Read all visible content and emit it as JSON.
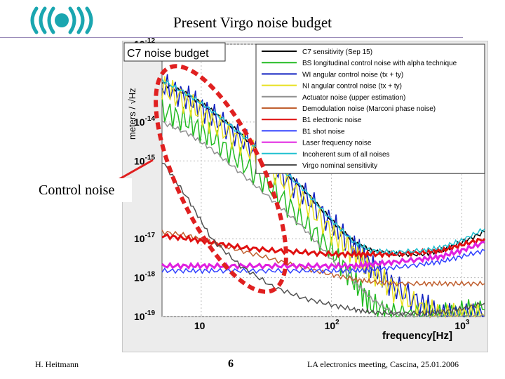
{
  "slide": {
    "title": "Present Virgo noise budget",
    "annotation": "Control noise",
    "footer_left": "H. Heitmann",
    "page_number": "6",
    "footer_right": "LA electronics meeting, Cascina, 25.01.2006"
  },
  "colors": {
    "annotation_circle": "#e02020",
    "arrow": "#e02020",
    "rule": "#9a8bb8",
    "logo": "#1aa6b0"
  },
  "chart_data": {
    "type": "line",
    "title": "C7 noise budget",
    "ylabel": "meters / √Hz",
    "xlabel": "frequency[Hz]",
    "x_scale": "log",
    "y_scale": "log",
    "xlim": [
      5,
      1500
    ],
    "ylim": [
      1e-19,
      1e-12
    ],
    "x_ticks": [
      {
        "value": 10,
        "base": "10",
        "exp": ""
      },
      {
        "value": 100,
        "base": "10",
        "exp": "2"
      },
      {
        "value": 1000,
        "base": "10",
        "exp": "3"
      }
    ],
    "y_ticks": [
      {
        "value": 1e-12,
        "base": "10",
        "exp": "-12"
      },
      {
        "value": 1e-14,
        "base": "10",
        "exp": "-14"
      },
      {
        "value": 1e-15,
        "base": "10",
        "exp": "-15"
      },
      {
        "value": 1e-17,
        "base": "10",
        "exp": "-17"
      },
      {
        "value": 1e-18,
        "base": "10",
        "exp": "-18"
      },
      {
        "value": 1e-19,
        "base": "10",
        "exp": "-19"
      }
    ],
    "series": [
      {
        "name": "C7 sensitivity (Sep 15)",
        "color": "#000000",
        "x": [
          5,
          8,
          12,
          20,
          35,
          60,
          100,
          150,
          200,
          300,
          500,
          700,
          1000,
          1500
        ],
        "y": [
          1e-13,
          5e-14,
          2e-14,
          5e-15,
          1e-15,
          2e-16,
          3e-17,
          8e-18,
          5e-18,
          4e-18,
          4e-18,
          5e-18,
          8e-18,
          1.5e-17
        ]
      },
      {
        "name": "BS longitudinal control noise with alpha technique",
        "color": "#22bb22",
        "x": [
          5,
          8,
          12,
          20,
          35,
          60,
          100,
          150,
          200,
          300,
          500,
          700,
          1000,
          1500
        ],
        "y": [
          2e-14,
          1e-14,
          4e-15,
          1e-15,
          2e-16,
          3e-17,
          5e-18,
          8e-19,
          2e-19,
          1e-19,
          1e-19,
          1e-19,
          1.2e-19,
          1.5e-19
        ]
      },
      {
        "name": "WI angular control noise (tx + ty)",
        "color": "#1020c0",
        "x": [
          5,
          8,
          12,
          20,
          35,
          60,
          100,
          150,
          200,
          300,
          500,
          700,
          1000,
          1500
        ],
        "y": [
          9e-14,
          4e-14,
          1.5e-14,
          4e-15,
          8e-16,
          1.5e-16,
          2.5e-17,
          6e-18,
          2e-18,
          6e-19,
          2e-19,
          1e-19,
          1e-19,
          1e-19
        ]
      },
      {
        "name": "NI angular control noise (tx + ty)",
        "color": "#e8e020",
        "x": [
          5,
          8,
          12,
          20,
          35,
          60,
          100,
          150,
          200,
          300,
          500,
          700,
          1000,
          1500
        ],
        "y": [
          8e-14,
          3e-14,
          1e-14,
          3e-15,
          6e-16,
          1e-16,
          1.5e-17,
          4e-18,
          1.5e-18,
          5e-19,
          1.5e-19,
          1e-19,
          1e-19,
          1e-19
        ]
      },
      {
        "name": "Actuator noise (upper estimation)",
        "color": "#909090",
        "x": [
          5,
          8,
          12,
          20,
          35,
          60,
          100,
          150,
          200,
          300,
          500,
          700,
          1000,
          1500
        ],
        "y": [
          1e-14,
          5e-15,
          2e-15,
          5e-16,
          1e-16,
          2e-17,
          3e-18,
          8e-19,
          3e-19,
          1.2e-19,
          1e-19,
          1e-19,
          1e-19,
          1e-19
        ]
      },
      {
        "name": "Demodulation noise (Marconi phase noise)",
        "color": "#c06030",
        "x": [
          5,
          8,
          12,
          20,
          35,
          60,
          100,
          150,
          200,
          300,
          500,
          700,
          1000,
          1500
        ],
        "y": [
          1.5e-17,
          1.2e-17,
          8e-18,
          5e-18,
          3e-18,
          1.8e-18,
          1.2e-18,
          9e-19,
          8e-19,
          7e-19,
          7e-19,
          7e-19,
          7e-19,
          7e-19
        ]
      },
      {
        "name": "B1 electronic noise",
        "color": "#e01010",
        "x": [
          5,
          8,
          12,
          20,
          35,
          60,
          100,
          150,
          200,
          300,
          500,
          700,
          1000,
          1500
        ],
        "y": [
          1.2e-17,
          1e-17,
          8e-18,
          6e-18,
          5e-18,
          4.5e-18,
          4e-18,
          4e-18,
          4e-18,
          4e-18,
          4.5e-18,
          5e-18,
          7e-18,
          1e-17
        ]
      },
      {
        "name": "B1 shot noise",
        "color": "#3040ff",
        "x": [
          5,
          8,
          12,
          20,
          35,
          60,
          100,
          150,
          200,
          300,
          500,
          700,
          1000,
          1500
        ],
        "y": [
          1.5e-18,
          1.5e-18,
          1.5e-18,
          1.5e-18,
          1.5e-18,
          1.5e-18,
          1.5e-18,
          1.5e-18,
          1.6e-18,
          1.8e-18,
          2.2e-18,
          2.6e-18,
          3.5e-18,
          5e-18
        ]
      },
      {
        "name": "Laser frequency noise",
        "color": "#e020e0",
        "x": [
          5,
          8,
          12,
          20,
          35,
          60,
          100,
          150,
          200,
          300,
          500,
          700,
          1000,
          1500
        ],
        "y": [
          2e-18,
          2e-18,
          2e-18,
          2e-18,
          2e-18,
          2e-18,
          2e-18,
          2e-18,
          2.2e-18,
          2.5e-18,
          3e-18,
          3.5e-18,
          5e-18,
          8e-18
        ]
      },
      {
        "name": "Incoherent sum of all noises",
        "color": "#20c0d0",
        "x": [
          5,
          8,
          12,
          20,
          35,
          60,
          100,
          150,
          200,
          300,
          500,
          700,
          1000,
          1500
        ],
        "y": [
          1.2e-13,
          5e-14,
          2e-14,
          5e-15,
          1e-15,
          2e-16,
          3e-17,
          8e-18,
          5e-18,
          4.5e-18,
          5e-18,
          6e-18,
          9e-18,
          1.8e-17
        ]
      },
      {
        "name": "Virgo nominal sensitivity",
        "color": "#505050",
        "x": [
          5,
          8,
          12,
          20,
          35,
          60,
          100,
          150,
          200,
          300,
          500,
          700,
          1000,
          1500
        ],
        "y": [
          1e-15,
          1e-16,
          1e-17,
          2e-18,
          6e-19,
          3e-19,
          2e-19,
          1.5e-19,
          1.3e-19,
          1.2e-19,
          1.2e-19,
          1.3e-19,
          1.6e-19,
          2.2e-19
        ]
      }
    ]
  }
}
